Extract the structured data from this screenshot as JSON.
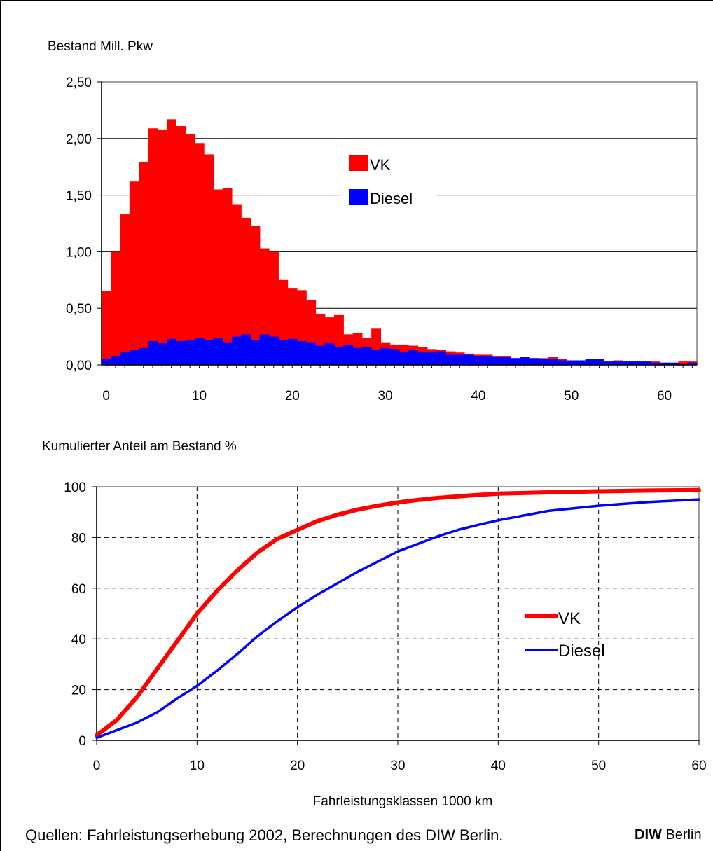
{
  "chart_data": [
    {
      "type": "bar",
      "title": "Bestand Mill. Pkw",
      "xlabel": "",
      "ylabel": "Bestand Mill. Pkw",
      "xlim": [
        -0.5,
        63.5
      ],
      "ylim": [
        0,
        2.5
      ],
      "yticks": [
        "0,00",
        "0,50",
        "1,00",
        "1,50",
        "2,00",
        "2,50"
      ],
      "xticks": [
        "0",
        "10",
        "20",
        "30",
        "40",
        "50",
        "60"
      ],
      "grid": "horizontal",
      "legend": "center",
      "colors": {
        "VK": "#ff0000",
        "Diesel": "#0000ff"
      },
      "x": [
        0,
        1,
        2,
        3,
        4,
        5,
        6,
        7,
        8,
        9,
        10,
        11,
        12,
        13,
        14,
        15,
        16,
        17,
        18,
        19,
        20,
        21,
        22,
        23,
        24,
        25,
        26,
        27,
        28,
        29,
        30,
        31,
        32,
        33,
        34,
        35,
        36,
        37,
        38,
        39,
        40,
        41,
        42,
        43,
        44,
        45,
        46,
        47,
        48,
        49,
        50,
        51,
        52,
        53,
        54,
        55,
        56,
        57,
        58,
        59,
        60,
        61,
        62,
        63
      ],
      "series": [
        {
          "name": "VK",
          "values": [
            0.65,
            1.0,
            1.33,
            1.62,
            1.79,
            2.09,
            2.08,
            2.17,
            2.11,
            2.04,
            1.96,
            1.86,
            1.55,
            1.56,
            1.42,
            1.3,
            1.23,
            1.03,
            1.0,
            0.75,
            0.68,
            0.66,
            0.57,
            0.45,
            0.42,
            0.44,
            0.27,
            0.28,
            0.24,
            0.32,
            0.2,
            0.18,
            0.18,
            0.17,
            0.16,
            0.14,
            0.13,
            0.12,
            0.11,
            0.1,
            0.09,
            0.09,
            0.08,
            0.08,
            0.06,
            0.07,
            0.06,
            0.06,
            0.07,
            0.05,
            0.04,
            0.04,
            0.04,
            0.04,
            0.03,
            0.04,
            0.03,
            0.03,
            0.03,
            0.03,
            0.02,
            0.02,
            0.03,
            0.03
          ]
        },
        {
          "name": "Diesel",
          "values": [
            0.05,
            0.08,
            0.11,
            0.13,
            0.15,
            0.21,
            0.19,
            0.23,
            0.21,
            0.22,
            0.24,
            0.22,
            0.24,
            0.2,
            0.25,
            0.27,
            0.22,
            0.27,
            0.25,
            0.22,
            0.23,
            0.21,
            0.2,
            0.17,
            0.19,
            0.16,
            0.18,
            0.15,
            0.16,
            0.13,
            0.15,
            0.14,
            0.11,
            0.13,
            0.11,
            0.11,
            0.12,
            0.09,
            0.09,
            0.09,
            0.08,
            0.08,
            0.07,
            0.07,
            0.06,
            0.07,
            0.06,
            0.05,
            0.05,
            0.04,
            0.04,
            0.04,
            0.05,
            0.05,
            0.03,
            0.03,
            0.03,
            0.03,
            0.03,
            0.02,
            0.02,
            0.02,
            0.01,
            0.02
          ]
        }
      ]
    },
    {
      "type": "line",
      "title": "Kumulierter Anteil am Bestand %",
      "xlabel": "Fahrleistungsklassen 1000 km",
      "ylabel": "Kumulierter Anteil am Bestand %",
      "xlim": [
        0,
        60
      ],
      "ylim": [
        0,
        100
      ],
      "yticks": [
        "0",
        "20",
        "40",
        "60",
        "80",
        "100"
      ],
      "xticks": [
        "0",
        "10",
        "20",
        "30",
        "40",
        "50",
        "60"
      ],
      "grid": "dashed both",
      "legend": "right",
      "colors": {
        "VK": "#ff0000",
        "Diesel": "#0000ff"
      },
      "series": [
        {
          "name": "VK",
          "x": [
            0,
            2,
            4,
            6,
            8,
            10,
            12,
            14,
            16,
            18,
            20,
            22,
            24,
            26,
            28,
            30,
            32,
            34,
            36,
            38,
            40,
            45,
            50,
            55,
            60
          ],
          "y": [
            2,
            8,
            17,
            28,
            39,
            50,
            59,
            67,
            74,
            79.5,
            83,
            86.5,
            89,
            91,
            92.5,
            93.8,
            94.8,
            95.6,
            96.2,
            96.8,
            97.3,
            97.8,
            98.2,
            98.5,
            98.7
          ]
        },
        {
          "name": "Diesel",
          "x": [
            0,
            2,
            4,
            6,
            8,
            10,
            12,
            14,
            16,
            18,
            20,
            22,
            24,
            26,
            28,
            30,
            32,
            34,
            36,
            38,
            40,
            45,
            50,
            55,
            60
          ],
          "y": [
            1,
            4,
            7,
            11,
            16.5,
            21.5,
            27.5,
            34,
            41,
            47,
            52.5,
            57.5,
            62,
            66.5,
            70.5,
            74.5,
            77.5,
            80.5,
            83,
            85,
            86.8,
            90.5,
            92.5,
            94,
            95
          ]
        }
      ]
    }
  ],
  "footer": {
    "source": "Quellen: Fahrleistungserhebung 2002, Berechnungen des DIW Berlin.",
    "brand_bold": "DIW",
    "brand_rest": " Berlin"
  }
}
